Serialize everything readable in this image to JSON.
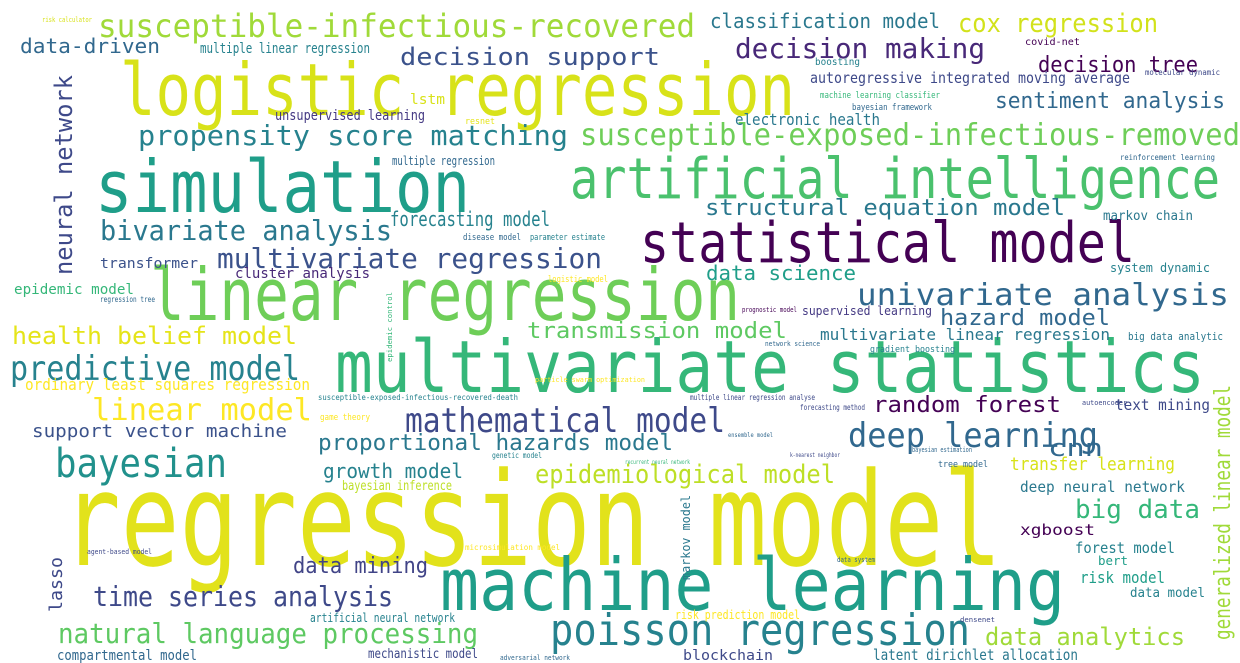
{
  "words": [
    "regression model",
    "machine learning",
    "multivariate statistics",
    "linear regression",
    "logistic regression",
    "simulation",
    "artificial intelligence",
    "statistical model",
    "poisson regression",
    "susceptible-infectious-recovered",
    "susceptible-exposed-infectious-removed",
    "propensity score matching",
    "bivariate analysis",
    "multivariate regression",
    "univariate analysis",
    "predictive model",
    "bayesian",
    "mathematical model",
    "deep learning",
    "epidemiological model",
    "time series analysis",
    "natural language processing",
    "decision making",
    "decision support",
    "cox regression",
    "classification model",
    "data-driven",
    "multiple linear regression",
    "decision tree",
    "autoregressive integrated moving average",
    "sentiment analysis",
    "electronic health",
    "unsupervised learning",
    "lstm",
    "neural network",
    "forecasting model",
    "structural equation model",
    "cluster analysis",
    "transformer",
    "data science",
    "epidemic model",
    "health belief model",
    "transmission model",
    "hazard model",
    "multivariate linear regression",
    "supervised learning",
    "ordinary least squares regression",
    "linear model",
    "random forest",
    "text mining",
    "support vector machine",
    "proportional hazards model",
    "cnn",
    "growth model",
    "bayesian inference",
    "transfer learning",
    "big data",
    "deep neural network",
    "xgboost",
    "forest model",
    "risk model",
    "data mining",
    "lasso",
    "data analytics",
    "generalized linear model",
    "compartmental model",
    "artificial neural network",
    "mechanistic model",
    "blockchain",
    "latent dirichlet allocation",
    "risk prediction model",
    "markov model",
    "markov chain",
    "system dynamic",
    "big data analytic",
    "gradient boosting",
    "logistic model",
    "disease model",
    "parameter estimate",
    "multiple regression",
    "covid-net",
    "boosting",
    "machine learning classifier",
    "bayesian framework",
    "reinforcement learning",
    "resnet",
    "game theory",
    "multiple linear regression analyse",
    "forecasting method",
    "ensemble model",
    "genetic model",
    "tree model",
    "regression tree",
    "k-nearest neighbor",
    "prognostic model",
    "network science",
    "autoencoder",
    "bert",
    "data model",
    "microsimulation model",
    "agent-based model",
    "adversarial network",
    "densenet",
    "data system",
    "risk calculator",
    "molecular dynamic",
    "susceptible-exposed-infectious-recovered-death",
    "particle swarm optimization",
    "recurrent neural network",
    "bayesian estimation",
    "epidemic control"
  ]
}
